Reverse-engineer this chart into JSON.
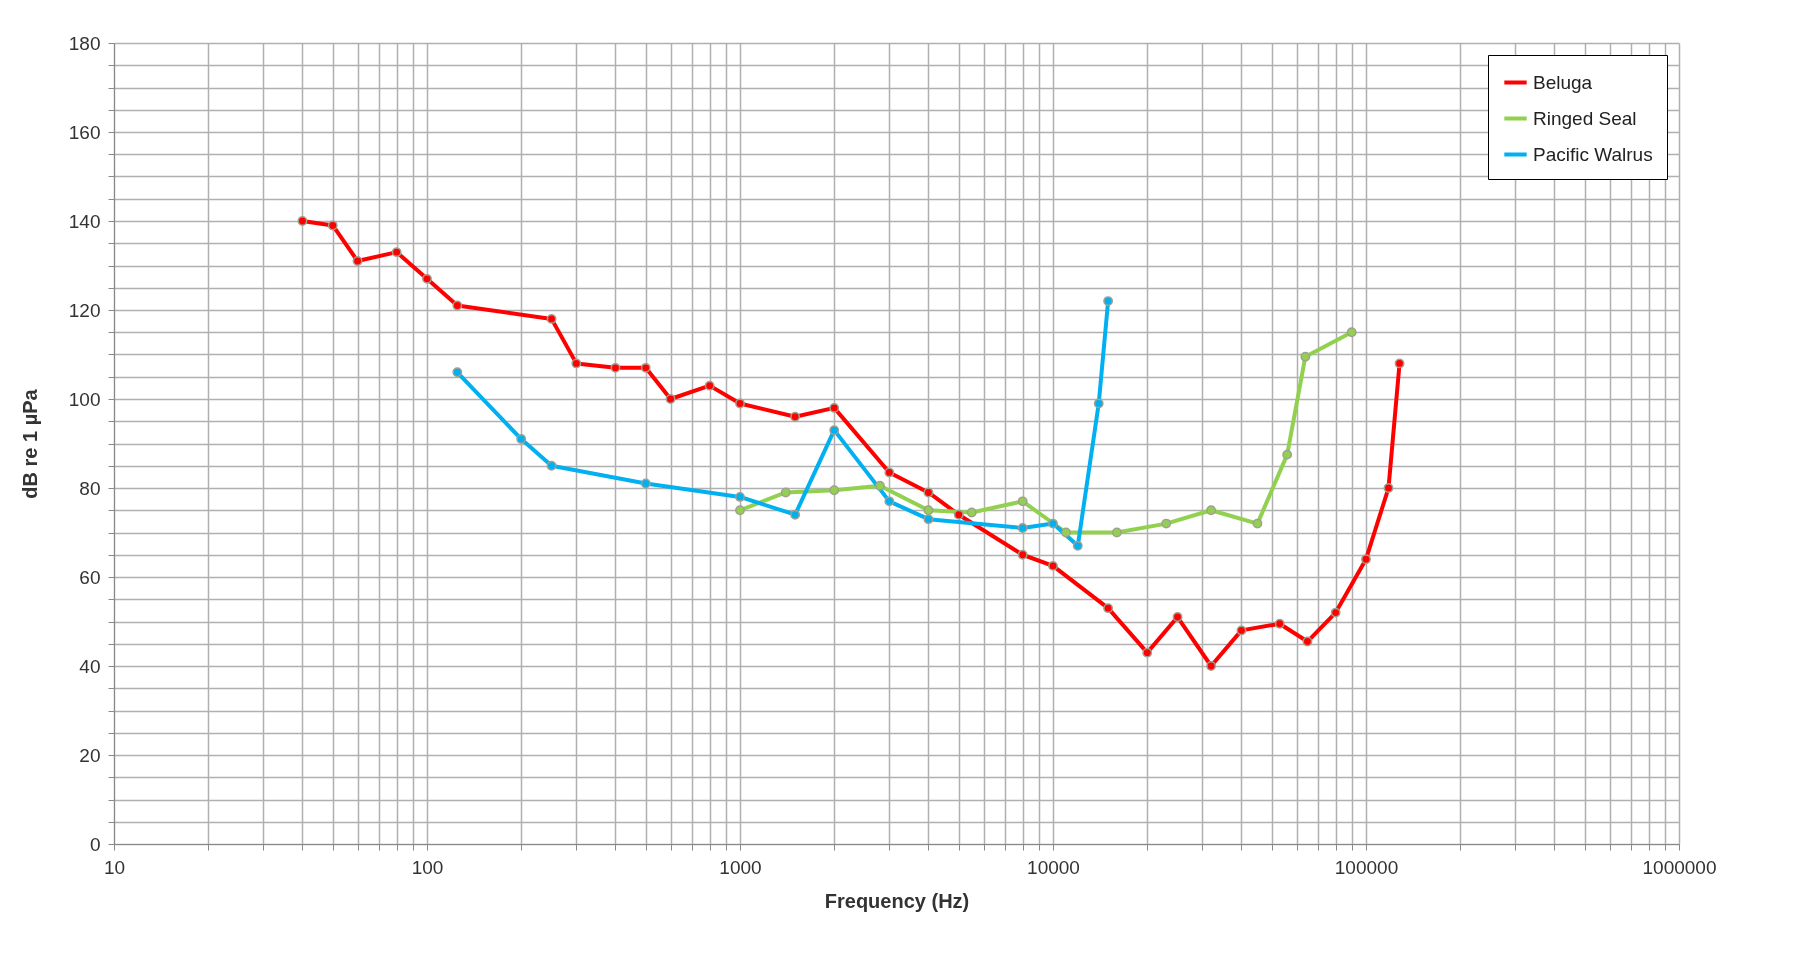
{
  "chart_data": {
    "type": "line",
    "xlabel": "Frequency (Hz)",
    "ylabel": "dB re 1 µPa",
    "log": "x",
    "grid": true,
    "legend": "top right",
    "marker": "circle",
    "line_style": "solid",
    "xlim": [
      10,
      1000000
    ],
    "xticks": [
      10,
      {
        "value": 20,
        "label": null
      },
      {
        "value": 30,
        "label": null
      },
      {
        "value": 40,
        "label": null
      },
      {
        "value": 50,
        "label": null
      },
      {
        "value": 60,
        "label": null
      },
      {
        "value": 70,
        "label": null
      },
      {
        "value": 80,
        "label": null
      },
      {
        "value": 90,
        "label": null
      },
      100,
      {
        "value": 200,
        "label": null
      },
      {
        "value": 300,
        "label": null
      },
      {
        "value": 400,
        "label": null
      },
      {
        "value": 500,
        "label": null
      },
      {
        "value": 600,
        "label": null
      },
      {
        "value": 700,
        "label": null
      },
      {
        "value": 800,
        "label": null
      },
      {
        "value": 900,
        "label": null
      },
      1000,
      {
        "value": 2000,
        "label": null
      },
      {
        "value": 3000,
        "label": null
      },
      {
        "value": 4000,
        "label": null
      },
      {
        "value": 5000,
        "label": null
      },
      {
        "value": 6000,
        "label": null
      },
      {
        "value": 7000,
        "label": null
      },
      {
        "value": 8000,
        "label": null
      },
      {
        "value": 9000,
        "label": null
      },
      10000,
      {
        "value": 20000,
        "label": null
      },
      {
        "value": 30000,
        "label": null
      },
      {
        "value": 40000,
        "label": null
      },
      {
        "value": 50000,
        "label": null
      },
      {
        "value": 60000,
        "label": null
      },
      {
        "value": 70000,
        "label": null
      },
      {
        "value": 80000,
        "label": null
      },
      {
        "value": 90000,
        "label": null
      },
      100000,
      {
        "value": 200000,
        "label": null
      },
      {
        "value": 300000,
        "label": null
      },
      {
        "value": 400000,
        "label": null
      },
      {
        "value": 500000,
        "label": null
      },
      {
        "value": 600000,
        "label": null
      },
      {
        "value": 700000,
        "label": null
      },
      {
        "value": 800000,
        "label": null
      },
      {
        "value": 900000,
        "label": null
      },
      1000000
    ],
    "ylim": [
      0,
      180
    ],
    "yticks": [
      0,
      {
        "value": 5,
        "label": null
      },
      {
        "value": 10,
        "label": null
      },
      {
        "value": 15,
        "label": null
      },
      20,
      {
        "value": 25,
        "label": null
      },
      {
        "value": 30,
        "label": null
      },
      {
        "value": 35,
        "label": null
      },
      40,
      {
        "value": 45,
        "label": null
      },
      {
        "value": 50,
        "label": null
      },
      {
        "value": 55,
        "label": null
      },
      60,
      {
        "value": 65,
        "label": null
      },
      {
        "value": 70,
        "label": null
      },
      {
        "value": 75,
        "label": null
      },
      80,
      {
        "value": 85,
        "label": null
      },
      {
        "value": 90,
        "label": null
      },
      {
        "value": 95,
        "label": null
      },
      100,
      {
        "value": 105,
        "label": null
      },
      {
        "value": 110,
        "label": null
      },
      {
        "value": 115,
        "label": null
      },
      120,
      {
        "value": 125,
        "label": null
      },
      {
        "value": 130,
        "label": null
      },
      {
        "value": 135,
        "label": null
      },
      140,
      {
        "value": 145,
        "label": null
      },
      {
        "value": 150,
        "label": null
      },
      {
        "value": 155,
        "label": null
      },
      160,
      {
        "value": 165,
        "label": null
      },
      {
        "value": 170,
        "label": null
      },
      {
        "value": 175,
        "label": null
      },
      180
    ],
    "series": [
      {
        "name": "Beluga",
        "color": "#ff0000",
        "x": [
          40,
          50,
          60,
          80,
          100,
          125,
          250,
          300,
          400,
          500,
          600,
          800,
          1000,
          1500,
          2000,
          3000,
          4000,
          5000,
          8000,
          10000,
          15000,
          20000,
          25000,
          32000,
          40000,
          53000,
          65000,
          80000,
          100000,
          118000,
          128000
        ],
        "values": [
          140,
          139,
          131,
          133,
          127,
          121,
          118,
          108,
          107,
          107,
          100,
          103,
          99,
          96,
          98,
          83.5,
          79,
          74,
          65,
          62.5,
          53,
          43,
          51,
          40,
          48,
          49.5,
          45.5,
          52,
          64,
          80,
          108
        ]
      },
      {
        "name": "Ringed Seal",
        "color": "#92d050",
        "x": [
          1000,
          1400,
          2000,
          2800,
          4000,
          5500,
          8000,
          11000,
          16000,
          23000,
          32000,
          45000,
          56000,
          64000,
          90000
        ],
        "values": [
          75,
          79,
          79.5,
          80.5,
          75,
          74.5,
          77,
          70,
          70,
          72,
          75,
          72,
          87.5,
          109.5,
          115
        ]
      },
      {
        "name": "Pacific Walrus",
        "color": "#00b0f0",
        "x": [
          125,
          200,
          250,
          500,
          1000,
          1500,
          2000,
          3000,
          4000,
          8000,
          10000,
          12000,
          14000,
          15000
        ],
        "values": [
          106,
          91,
          85,
          81,
          78,
          74,
          93,
          77,
          73,
          71,
          72,
          67,
          99,
          122
        ]
      }
    ]
  }
}
